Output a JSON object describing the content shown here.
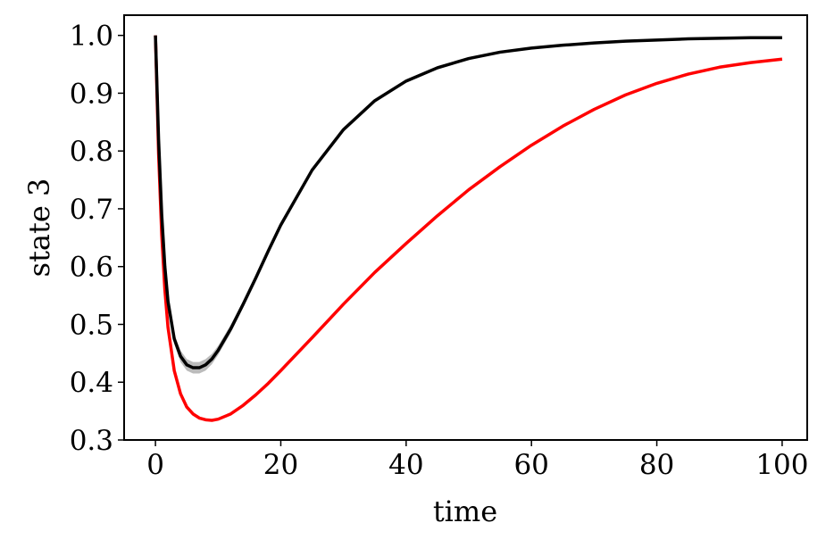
{
  "chart_data": {
    "type": "line",
    "xlabel": "time",
    "ylabel": "state 3",
    "xlim": [
      -5,
      104
    ],
    "ylim": [
      0.3,
      1.035
    ],
    "xticks": [
      0,
      20,
      40,
      60,
      80,
      100
    ],
    "xtick_labels": [
      "0",
      "20",
      "40",
      "60",
      "80",
      "100"
    ],
    "yticks": [
      0.3,
      0.4,
      0.5,
      0.6,
      0.7,
      0.8,
      0.9,
      1.0
    ],
    "ytick_labels": [
      "0.3",
      "0.4",
      "0.5",
      "0.6",
      "0.7",
      "0.8",
      "0.9",
      "1.0"
    ],
    "grid": false,
    "series": [
      {
        "color": "#ff0000",
        "x": [
          0,
          0.5,
          1,
          1.5,
          2,
          3,
          4,
          5,
          6,
          7,
          8,
          9,
          10,
          12,
          14,
          16,
          18,
          20,
          25,
          30,
          35,
          40,
          45,
          50,
          55,
          60,
          65,
          70,
          75,
          80,
          85,
          90,
          95,
          100
        ],
        "y": [
          1.0,
          0.795,
          0.655,
          0.56,
          0.495,
          0.42,
          0.38,
          0.357,
          0.345,
          0.338,
          0.335,
          0.334,
          0.336,
          0.345,
          0.36,
          0.378,
          0.398,
          0.42,
          0.477,
          0.535,
          0.59,
          0.64,
          0.688,
          0.733,
          0.773,
          0.81,
          0.843,
          0.872,
          0.897,
          0.917,
          0.933,
          0.945,
          0.953,
          0.959
        ]
      },
      {
        "color": "#000000",
        "band_color": "#aaaaaa",
        "x": [
          0,
          0.5,
          1,
          1.5,
          2,
          3,
          4,
          5,
          6,
          7,
          8,
          9,
          10,
          12,
          14,
          16,
          18,
          20,
          25,
          30,
          35,
          40,
          45,
          50,
          55,
          60,
          65,
          70,
          75,
          80,
          85,
          90,
          95,
          100
        ],
        "y": [
          1.0,
          0.82,
          0.69,
          0.6,
          0.54,
          0.475,
          0.445,
          0.43,
          0.425,
          0.425,
          0.43,
          0.44,
          0.455,
          0.492,
          0.535,
          0.58,
          0.627,
          0.672,
          0.767,
          0.837,
          0.887,
          0.921,
          0.944,
          0.96,
          0.971,
          0.978,
          0.983,
          0.987,
          0.99,
          0.992,
          0.994,
          0.995,
          0.996,
          0.996
        ],
        "band_halfwidth": [
          0.0,
          0.004,
          0.006,
          0.007,
          0.008,
          0.009,
          0.01,
          0.01,
          0.01,
          0.01,
          0.01,
          0.009,
          0.008,
          0.007,
          0.006,
          0.006,
          0.005,
          0.005,
          0.004,
          0.004,
          0.003,
          0.003,
          0.003,
          0.002,
          0.002,
          0.002,
          0.002,
          0.001,
          0.001,
          0.001,
          0.001,
          0.001,
          0.001,
          0.001
        ]
      }
    ]
  }
}
